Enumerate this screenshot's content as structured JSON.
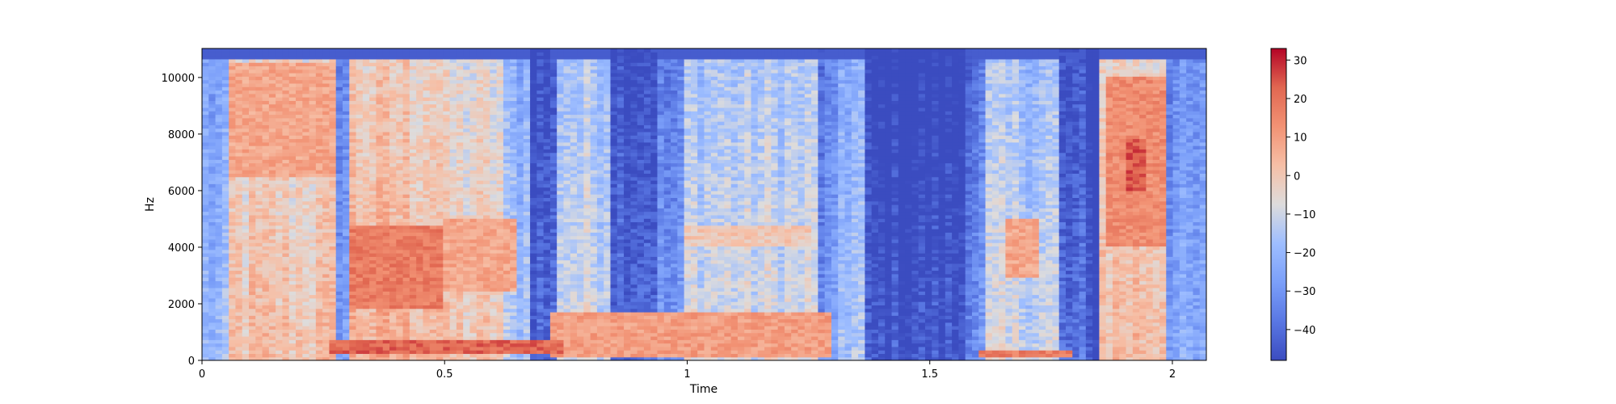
{
  "chart_data": {
    "type": "heatmap",
    "xlabel": "Time",
    "ylabel": "Hz",
    "xlim": [
      0,
      2.07
    ],
    "ylim": [
      0,
      11025
    ],
    "x_ticks": [
      {
        "value": 0,
        "label": "0"
      },
      {
        "value": 0.5,
        "label": "0.5"
      },
      {
        "value": 1,
        "label": "1"
      },
      {
        "value": 1.5,
        "label": "1.5"
      },
      {
        "value": 2,
        "label": "2"
      }
    ],
    "y_ticks": [
      {
        "value": 0,
        "label": "0"
      },
      {
        "value": 2000,
        "label": "2000"
      },
      {
        "value": 4000,
        "label": "4000"
      },
      {
        "value": 6000,
        "label": "6000"
      },
      {
        "value": 8000,
        "label": "8000"
      },
      {
        "value": 10000,
        "label": "10000"
      }
    ],
    "colorbar": {
      "colormap": "coolwarm",
      "range": [
        -48,
        33
      ],
      "ticks": [
        {
          "value": 30,
          "label": "30"
        },
        {
          "value": 20,
          "label": "20"
        },
        {
          "value": 10,
          "label": "10"
        },
        {
          "value": 0,
          "label": "0"
        },
        {
          "value": -10,
          "label": "−10"
        },
        {
          "value": -20,
          "label": "−20"
        },
        {
          "value": -30,
          "label": "−30"
        },
        {
          "value": -40,
          "label": "−40"
        }
      ]
    },
    "time_segments": [
      {
        "t0": 0.0,
        "t1": 0.05,
        "level": -20
      },
      {
        "t0": 0.05,
        "t1": 0.28,
        "level": 2
      },
      {
        "t0": 0.28,
        "t1": 0.3,
        "level": -25
      },
      {
        "t0": 0.3,
        "t1": 0.5,
        "level": 6
      },
      {
        "t0": 0.5,
        "t1": 0.62,
        "level": 0
      },
      {
        "t0": 0.62,
        "t1": 0.67,
        "level": -15
      },
      {
        "t0": 0.67,
        "t1": 0.73,
        "level": -40
      },
      {
        "t0": 0.73,
        "t1": 0.84,
        "level": -8
      },
      {
        "t0": 0.84,
        "t1": 0.94,
        "level": -38
      },
      {
        "t0": 0.94,
        "t1": 1.0,
        "level": -30
      },
      {
        "t0": 1.0,
        "t1": 1.27,
        "level": -8
      },
      {
        "t0": 1.27,
        "t1": 1.31,
        "level": -30
      },
      {
        "t0": 1.31,
        "t1": 1.36,
        "level": -15
      },
      {
        "t0": 1.36,
        "t1": 1.57,
        "level": -45
      },
      {
        "t0": 1.57,
        "t1": 1.62,
        "level": -30
      },
      {
        "t0": 1.62,
        "t1": 1.76,
        "level": -10
      },
      {
        "t0": 1.76,
        "t1": 1.82,
        "level": -40
      },
      {
        "t0": 1.82,
        "t1": 1.85,
        "level": -46
      },
      {
        "t0": 1.85,
        "t1": 1.99,
        "level": 4
      },
      {
        "t0": 1.99,
        "t1": 2.07,
        "level": -25
      }
    ],
    "hot_regions": [
      {
        "t0": 0.05,
        "t1": 0.28,
        "f0": 6500,
        "f1": 10500,
        "level": 8
      },
      {
        "t0": 0.3,
        "t1": 0.5,
        "f0": 1800,
        "f1": 4800,
        "level": 18
      },
      {
        "t0": 0.5,
        "t1": 0.65,
        "f0": 2500,
        "f1": 5000,
        "level": 8
      },
      {
        "t0": 0.26,
        "t1": 0.75,
        "f0": 200,
        "f1": 700,
        "level": 22
      },
      {
        "t0": 0.72,
        "t1": 1.3,
        "f0": 150,
        "f1": 1700,
        "level": 10
      },
      {
        "t0": 1.0,
        "t1": 1.25,
        "f0": 4000,
        "f1": 4800,
        "level": 0
      },
      {
        "t0": 1.65,
        "t1": 1.73,
        "f0": 3000,
        "f1": 5000,
        "level": 8
      },
      {
        "t0": 1.86,
        "t1": 1.99,
        "f0": 4000,
        "f1": 10000,
        "level": 14
      },
      {
        "t0": 1.9,
        "t1": 1.95,
        "f0": 6000,
        "f1": 7800,
        "level": 24
      },
      {
        "t0": 1.6,
        "t1": 1.8,
        "f0": 100,
        "f1": 400,
        "level": 18
      }
    ]
  }
}
